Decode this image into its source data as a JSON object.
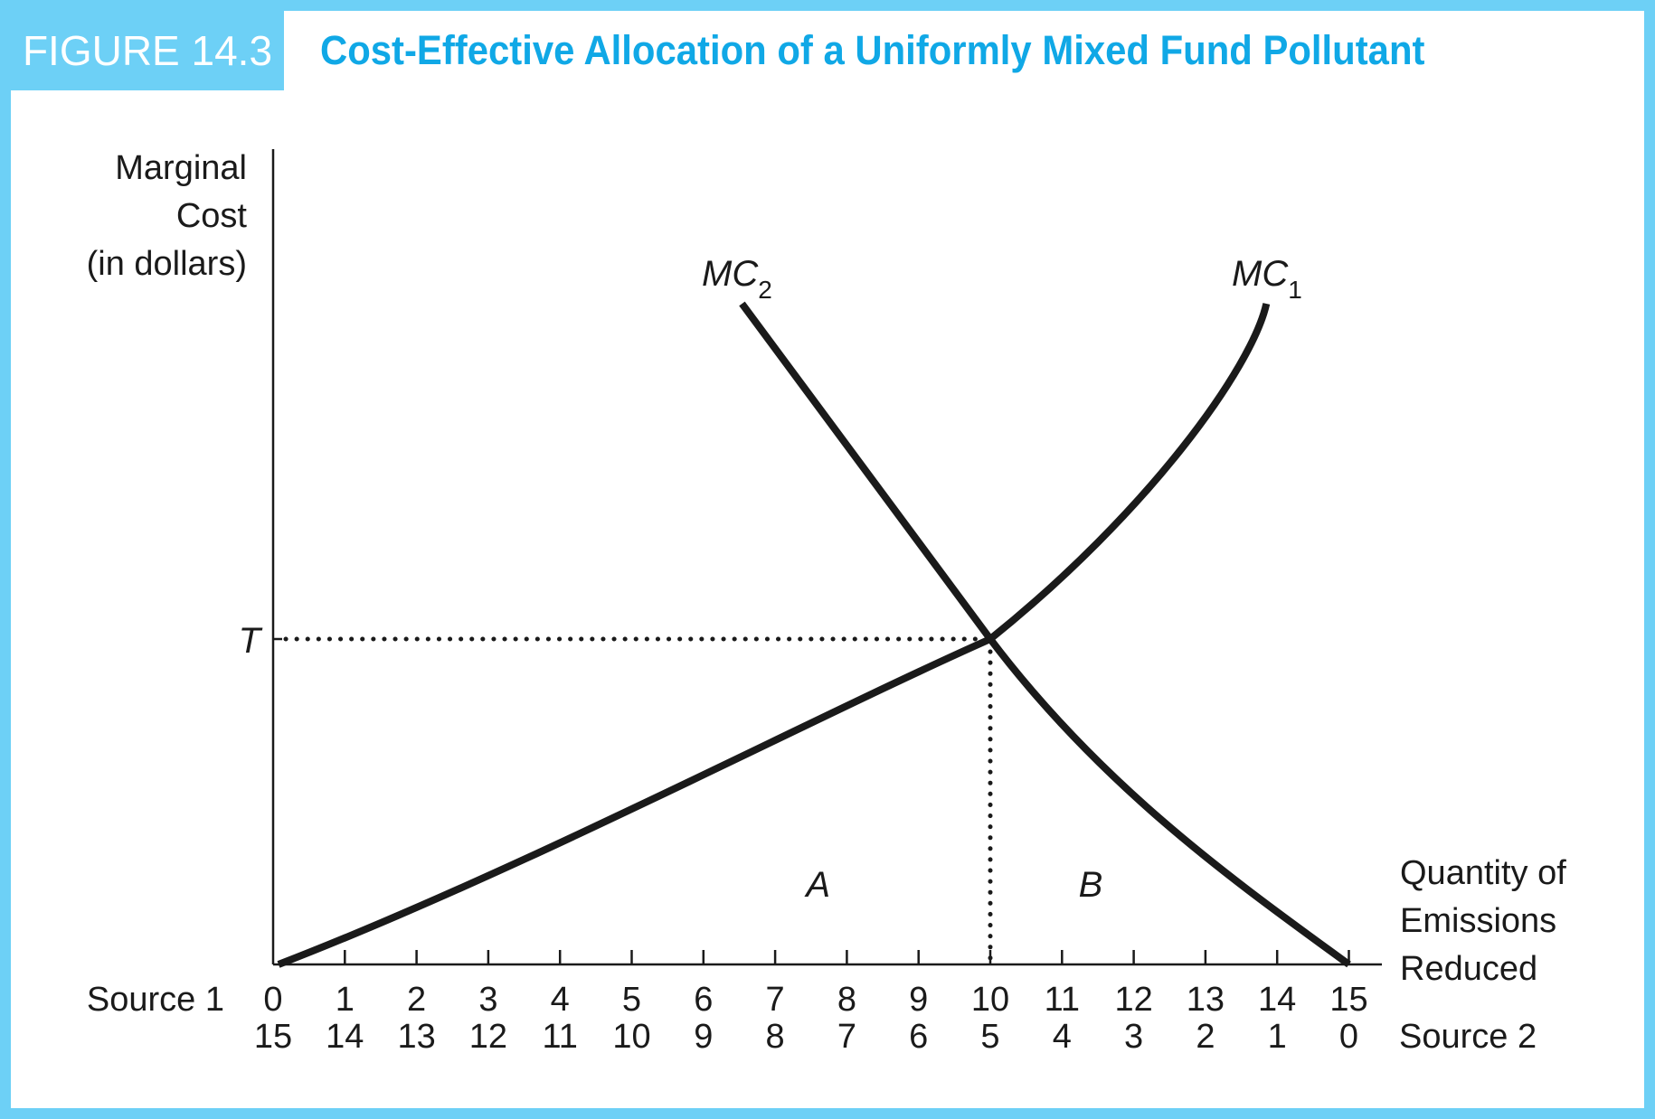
{
  "figure": {
    "label": "FIGURE 14.3",
    "title": "Cost-Effective Allocation of a Uniformly Mixed Fund Pollutant",
    "accent_color": "#6dd0f6",
    "title_color": "#10a8e6"
  },
  "chart_data": {
    "type": "line",
    "ylabel": [
      "Marginal",
      "Cost",
      "(in dollars)"
    ],
    "xlabel": [
      "Quantity of",
      "Emissions",
      "Reduced"
    ],
    "xlim": [
      0,
      15
    ],
    "grid": false,
    "x_axis_source1_label": "Source 1",
    "x_axis_source2_label": "Source 2",
    "source1_ticks": [
      "0",
      "1",
      "2",
      "3",
      "4",
      "5",
      "6",
      "7",
      "8",
      "9",
      "10",
      "11",
      "12",
      "13",
      "14",
      "15"
    ],
    "source2_ticks": [
      "15",
      "14",
      "13",
      "12",
      "11",
      "10",
      "9",
      "8",
      "7",
      "6",
      "5",
      "4",
      "3",
      "2",
      "1",
      "0"
    ],
    "y_tick_label": "T",
    "series": [
      {
        "name": "MC1",
        "label_main": "MC",
        "label_sub": "1",
        "x_start": 0,
        "x_end": 13.85,
        "shape": "convex-increasing"
      },
      {
        "name": "MC2",
        "label_main": "MC",
        "label_sub": "2",
        "x_start": 6.5,
        "x_end": 15,
        "shape": "convex-decreasing"
      }
    ],
    "intersection": {
      "x": 10,
      "y_label": "T"
    },
    "region_labels": [
      {
        "text": "A",
        "x": 7.6
      },
      {
        "text": "B",
        "x": 11.4
      }
    ]
  }
}
